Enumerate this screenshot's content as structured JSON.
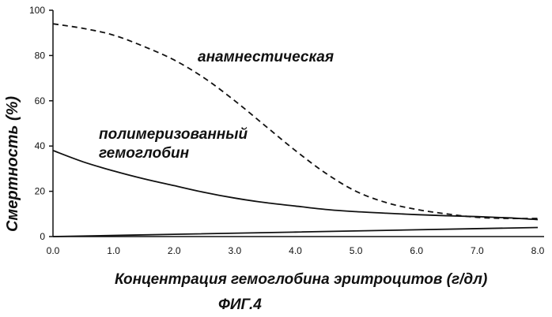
{
  "chart_data": {
    "type": "line",
    "title": "",
    "figure_label": "ФИГ.4",
    "xlabel": "Концентрация гемоглобина эритроцитов (г/дл)",
    "ylabel": "Смертность (%)",
    "xlim": [
      0,
      8
    ],
    "ylim": [
      0,
      100
    ],
    "x_ticks": [
      "0.0",
      "1.0",
      "2.0",
      "3.0",
      "4.0",
      "5.0",
      "6.0",
      "7.0",
      "8.0"
    ],
    "y_ticks": [
      "0",
      "20",
      "40",
      "60",
      "80",
      "100"
    ],
    "grid": false,
    "series": [
      {
        "name": "анамнестическая",
        "style": "dashed",
        "color": "#111111",
        "x": [
          0,
          0.5,
          1.0,
          1.5,
          2.0,
          2.5,
          3.0,
          3.5,
          4.0,
          4.5,
          5.0,
          5.5,
          6.0,
          6.5,
          7.0,
          7.5,
          8.0
        ],
        "y": [
          94,
          92,
          89,
          84,
          78,
          70,
          60,
          49,
          38,
          28,
          20,
          15,
          12,
          10,
          8.5,
          8,
          8
        ]
      },
      {
        "name": "полимеризованный гемоглобин",
        "name_lines": [
          "полимеризованный",
          "гемоглобин"
        ],
        "style": "solid",
        "color": "#111111",
        "x": [
          0,
          0.5,
          1.0,
          1.5,
          2.0,
          2.5,
          3.0,
          3.5,
          4.0,
          4.5,
          5.0,
          5.5,
          6.0,
          6.5,
          7.0,
          7.5,
          8.0
        ],
        "y": [
          38,
          33,
          29,
          25.5,
          22.5,
          19.5,
          17,
          15,
          13.5,
          12,
          11,
          10.3,
          9.7,
          9.2,
          8.8,
          8.3,
          7.5
        ]
      },
      {
        "name": "",
        "style": "solid",
        "color": "#111111",
        "x": [
          0,
          2,
          4,
          6,
          8
        ],
        "y": [
          0,
          1,
          2,
          3,
          4
        ]
      }
    ]
  }
}
